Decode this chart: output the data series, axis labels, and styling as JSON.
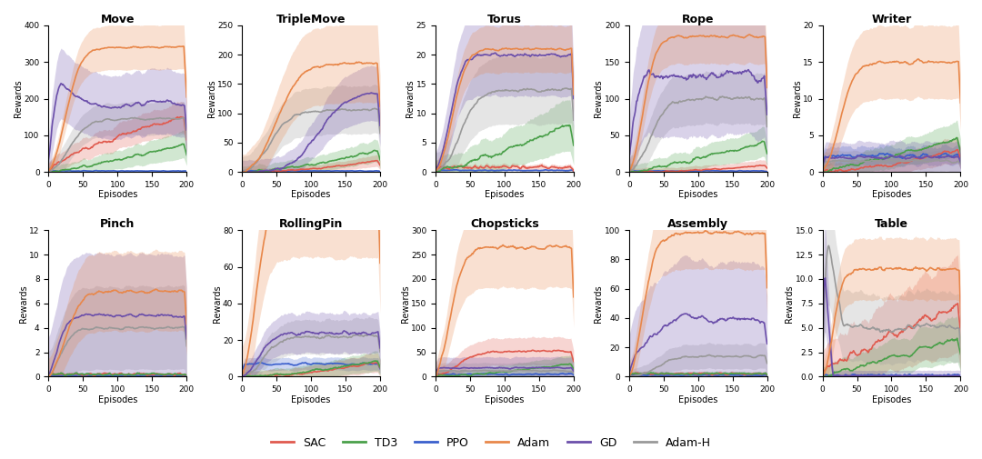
{
  "subplots": [
    {
      "title": "Move",
      "ylim": [
        0,
        400
      ],
      "yticks": [
        0,
        100,
        200,
        300,
        400
      ]
    },
    {
      "title": "TripleMove",
      "ylim": [
        0,
        250
      ],
      "yticks": [
        0,
        50,
        100,
        150,
        200,
        250
      ]
    },
    {
      "title": "Torus",
      "ylim": [
        0,
        25
      ],
      "yticks": [
        0,
        5,
        10,
        15,
        20,
        25
      ]
    },
    {
      "title": "Rope",
      "ylim": [
        0,
        200
      ],
      "yticks": [
        0,
        50,
        100,
        150,
        200
      ]
    },
    {
      "title": "Writer",
      "ylim": [
        0,
        20
      ],
      "yticks": [
        0,
        5,
        10,
        15,
        20
      ]
    },
    {
      "title": "Pinch",
      "ylim": [
        0,
        12
      ],
      "yticks": [
        0,
        2,
        4,
        6,
        8,
        10,
        12
      ]
    },
    {
      "title": "RollingPin",
      "ylim": [
        0,
        80
      ],
      "yticks": [
        0,
        20,
        40,
        60,
        80
      ]
    },
    {
      "title": "Chopsticks",
      "ylim": [
        0,
        300
      ],
      "yticks": [
        0,
        50,
        100,
        150,
        200,
        250,
        300
      ]
    },
    {
      "title": "Assembly",
      "ylim": [
        0,
        100
      ],
      "yticks": [
        0,
        20,
        40,
        60,
        80,
        100
      ]
    },
    {
      "title": "Table",
      "ylim": [
        0,
        15
      ],
      "yticks": [
        0,
        2.5,
        5.0,
        7.5,
        10.0,
        12.5,
        15.0
      ]
    }
  ],
  "algorithms": [
    "SAC",
    "TD3",
    "PPO",
    "Adam",
    "GD",
    "Adam-H"
  ],
  "colors": {
    "SAC": "#e05a4e",
    "TD3": "#4aa04a",
    "PPO": "#3a5fcc",
    "Adam": "#e8874a",
    "GD": "#6b4faa",
    "Adam-H": "#999999"
  },
  "xlabel": "Episodes",
  "ylabel": "Rewards",
  "n_episodes": 201
}
